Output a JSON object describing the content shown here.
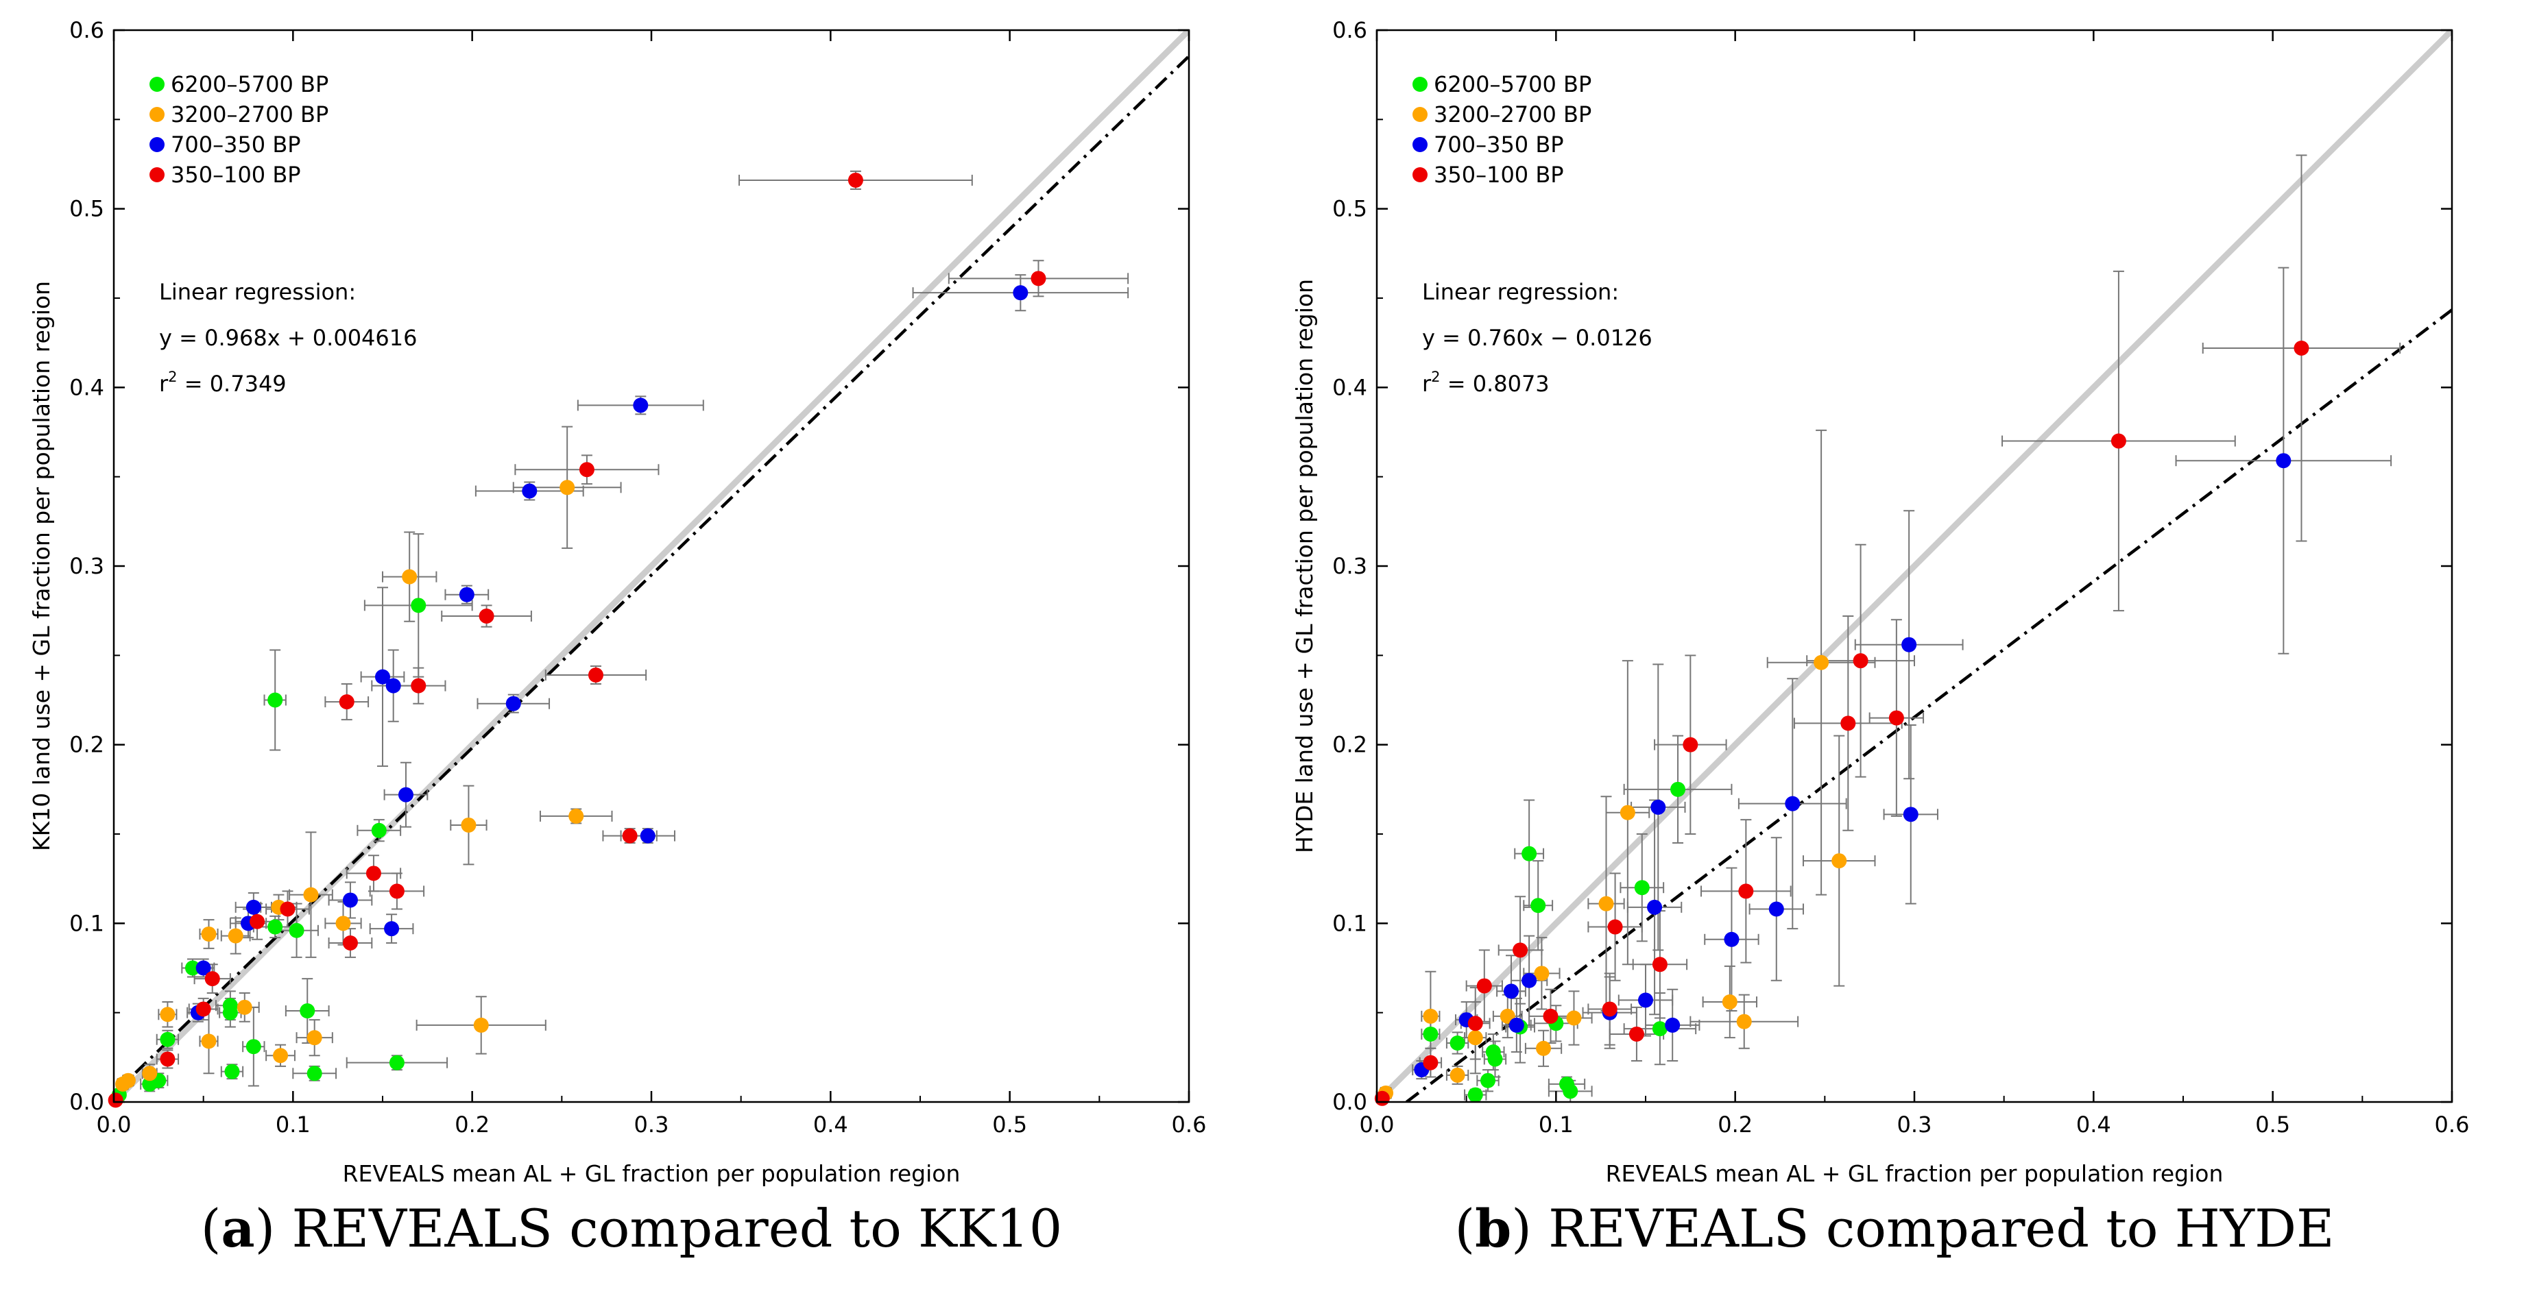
{
  "chart_data": [
    {
      "type": "scatter",
      "panel": "a",
      "caption_letter": "a",
      "caption_text": " REVEALS compared to KK10",
      "xlabel": "REVEALS mean AL + GL fraction per population region",
      "ylabel": "KK10 land use + GL fraction per population region",
      "xlim": [
        0,
        0.6
      ],
      "ylim": [
        0,
        0.6
      ],
      "xticks": [
        "0.0",
        "0.1",
        "0.2",
        "0.3",
        "0.4",
        "0.5",
        "0.6"
      ],
      "yticks": [
        "0.0",
        "0.1",
        "0.2",
        "0.3",
        "0.4",
        "0.5",
        "0.6"
      ],
      "grid": false,
      "legend_position": "top-left",
      "regression": {
        "title": "Linear regression:",
        "equation": "y = 0.968x + 0.004616",
        "r2_prefix": "r",
        "r2_sup": "2",
        "r2_value": " = 0.7349",
        "slope": 0.968,
        "intercept": 0.004616
      },
      "reference_line": {
        "slope": 1,
        "intercept": 0,
        "color": "#cccccc"
      },
      "series": [
        {
          "name": "6200–5700 BP",
          "color": "#00ee00",
          "points": [
            [
              0.003,
              0.004,
              0.002,
              0.002
            ],
            [
              0.02,
              0.01,
              0.005,
              0.004
            ],
            [
              0.025,
              0.012,
              0.005,
              0.004
            ],
            [
              0.03,
              0.035,
              0.006,
              0.005
            ],
            [
              0.044,
              0.075,
              0.006,
              0.005
            ],
            [
              0.065,
              0.054,
              0.008,
              0.008
            ],
            [
              0.065,
              0.05,
              0.006,
              0.008
            ],
            [
              0.066,
              0.017,
              0.006,
              0.004
            ],
            [
              0.078,
              0.031,
              0.006,
              0.022
            ],
            [
              0.09,
              0.225,
              0.006,
              0.028
            ],
            [
              0.09,
              0.098,
              0.012,
              0.006
            ],
            [
              0.102,
              0.096,
              0.012,
              0.015
            ],
            [
              0.108,
              0.051,
              0.012,
              0.018
            ],
            [
              0.112,
              0.016,
              0.012,
              0.004
            ],
            [
              0.148,
              0.152,
              0.012,
              0.006
            ],
            [
              0.158,
              0.022,
              0.028,
              0.004
            ],
            [
              0.17,
              0.278,
              0.03,
              0.04
            ]
          ]
        },
        {
          "name": "3200–2700 BP",
          "color": "#ffa500",
          "points": [
            [
              0.005,
              0.01,
              0.003,
              0.003
            ],
            [
              0.008,
              0.012,
              0.003,
              0.003
            ],
            [
              0.02,
              0.016,
              0.004,
              0.005
            ],
            [
              0.03,
              0.049,
              0.005,
              0.007
            ],
            [
              0.053,
              0.094,
              0.005,
              0.008
            ],
            [
              0.053,
              0.034,
              0.005,
              0.018
            ],
            [
              0.068,
              0.093,
              0.008,
              0.01
            ],
            [
              0.073,
              0.053,
              0.008,
              0.008
            ],
            [
              0.092,
              0.109,
              0.01,
              0.007
            ],
            [
              0.093,
              0.026,
              0.008,
              0.006
            ],
            [
              0.11,
              0.116,
              0.012,
              0.035
            ],
            [
              0.112,
              0.036,
              0.01,
              0.01
            ],
            [
              0.128,
              0.1,
              0.01,
              0.012
            ],
            [
              0.165,
              0.294,
              0.015,
              0.025
            ],
            [
              0.198,
              0.155,
              0.01,
              0.022
            ],
            [
              0.205,
              0.043,
              0.036,
              0.016
            ],
            [
              0.253,
              0.344,
              0.03,
              0.034
            ],
            [
              0.258,
              0.16,
              0.02,
              0.004
            ]
          ]
        },
        {
          "name": "700–350 BP",
          "color": "#0000ee",
          "points": [
            [
              0.047,
              0.05,
              0.006,
              0.005
            ],
            [
              0.05,
              0.075,
              0.006,
              0.005
            ],
            [
              0.075,
              0.1,
              0.01,
              0.008
            ],
            [
              0.078,
              0.109,
              0.01,
              0.008
            ],
            [
              0.132,
              0.113,
              0.012,
              0.01
            ],
            [
              0.15,
              0.238,
              0.012,
              0.05
            ],
            [
              0.155,
              0.097,
              0.012,
              0.008
            ],
            [
              0.156,
              0.233,
              0.012,
              0.02
            ],
            [
              0.163,
              0.172,
              0.012,
              0.018
            ],
            [
              0.197,
              0.284,
              0.012,
              0.005
            ],
            [
              0.223,
              0.223,
              0.02,
              0.005
            ],
            [
              0.232,
              0.342,
              0.03,
              0.005
            ],
            [
              0.294,
              0.39,
              0.035,
              0.005
            ],
            [
              0.298,
              0.149,
              0.015,
              0.004
            ],
            [
              0.506,
              0.453,
              0.06,
              0.01
            ]
          ]
        },
        {
          "name": "350–100 BP",
          "color": "#ee0000",
          "points": [
            [
              0.001,
              0.001,
              0.001,
              0.001
            ],
            [
              0.03,
              0.024,
              0.006,
              0.005
            ],
            [
              0.05,
              0.052,
              0.008,
              0.006
            ],
            [
              0.055,
              0.069,
              0.01,
              0.008
            ],
            [
              0.08,
              0.101,
              0.012,
              0.01
            ],
            [
              0.097,
              0.108,
              0.012,
              0.01
            ],
            [
              0.13,
              0.224,
              0.012,
              0.01
            ],
            [
              0.132,
              0.089,
              0.012,
              0.008
            ],
            [
              0.145,
              0.128,
              0.015,
              0.01
            ],
            [
              0.158,
              0.118,
              0.015,
              0.01
            ],
            [
              0.17,
              0.233,
              0.015,
              0.01
            ],
            [
              0.208,
              0.272,
              0.025,
              0.006
            ],
            [
              0.264,
              0.354,
              0.04,
              0.008
            ],
            [
              0.269,
              0.239,
              0.028,
              0.005
            ],
            [
              0.288,
              0.149,
              0.015,
              0.004
            ],
            [
              0.414,
              0.516,
              0.065,
              0.005
            ],
            [
              0.516,
              0.461,
              0.05,
              0.01
            ]
          ]
        }
      ]
    },
    {
      "type": "scatter",
      "panel": "b",
      "caption_letter": "b",
      "caption_text": " REVEALS compared to HYDE",
      "xlabel": "REVEALS mean AL + GL fraction per population region",
      "ylabel": "HYDE land use + GL fraction per population region",
      "xlim": [
        0,
        0.6
      ],
      "ylim": [
        0,
        0.6
      ],
      "xticks": [
        "0.0",
        "0.1",
        "0.2",
        "0.3",
        "0.4",
        "0.5",
        "0.6"
      ],
      "yticks": [
        "0.0",
        "0.1",
        "0.2",
        "0.3",
        "0.4",
        "0.5",
        "0.6"
      ],
      "grid": false,
      "legend_position": "top-left",
      "regression": {
        "title": "Linear regression:",
        "equation": "y = 0.760x − 0.0126",
        "r2_prefix": "r",
        "r2_sup": "2",
        "r2_value": " = 0.8073",
        "slope": 0.76,
        "intercept": -0.0126
      },
      "reference_line": {
        "slope": 1,
        "intercept": 0,
        "color": "#cccccc"
      },
      "series": [
        {
          "name": "6200–5700 BP",
          "color": "#00ee00",
          "points": [
            [
              0.03,
              0.038,
              0.005,
              0.008
            ],
            [
              0.045,
              0.033,
              0.006,
              0.006
            ],
            [
              0.055,
              0.004,
              0.006,
              0.003
            ],
            [
              0.062,
              0.012,
              0.006,
              0.006
            ],
            [
              0.065,
              0.028,
              0.006,
              0.01
            ],
            [
              0.066,
              0.024,
              0.006,
              0.01
            ],
            [
              0.08,
              0.042,
              0.008,
              0.02
            ],
            [
              0.085,
              0.139,
              0.008,
              0.03
            ],
            [
              0.09,
              0.11,
              0.008,
              0.025
            ],
            [
              0.1,
              0.044,
              0.012,
              0.01
            ],
            [
              0.106,
              0.01,
              0.01,
              0.004
            ],
            [
              0.108,
              0.006,
              0.012,
              0.006
            ],
            [
              0.148,
              0.12,
              0.012,
              0.03
            ],
            [
              0.158,
              0.041,
              0.02,
              0.02
            ],
            [
              0.168,
              0.175,
              0.03,
              0.03
            ]
          ]
        },
        {
          "name": "3200–2700 BP",
          "color": "#ffa500",
          "points": [
            [
              0.005,
              0.005,
              0.003,
              0.003
            ],
            [
              0.03,
              0.048,
              0.005,
              0.025
            ],
            [
              0.045,
              0.015,
              0.006,
              0.005
            ],
            [
              0.055,
              0.036,
              0.006,
              0.02
            ],
            [
              0.073,
              0.048,
              0.008,
              0.012
            ],
            [
              0.092,
              0.072,
              0.01,
              0.02
            ],
            [
              0.093,
              0.03,
              0.01,
              0.01
            ],
            [
              0.11,
              0.047,
              0.01,
              0.015
            ],
            [
              0.128,
              0.111,
              0.01,
              0.06
            ],
            [
              0.14,
              0.162,
              0.012,
              0.085
            ],
            [
              0.197,
              0.056,
              0.015,
              0.02
            ],
            [
              0.205,
              0.045,
              0.03,
              0.015
            ],
            [
              0.248,
              0.246,
              0.03,
              0.13
            ],
            [
              0.258,
              0.135,
              0.02,
              0.07
            ]
          ]
        },
        {
          "name": "700–350 BP",
          "color": "#0000ee",
          "points": [
            [
              0.025,
              0.018,
              0.005,
              0.005
            ],
            [
              0.05,
              0.046,
              0.006,
              0.01
            ],
            [
              0.075,
              0.062,
              0.008,
              0.02
            ],
            [
              0.078,
              0.043,
              0.008,
              0.015
            ],
            [
              0.085,
              0.068,
              0.01,
              0.025
            ],
            [
              0.13,
              0.05,
              0.015,
              0.02
            ],
            [
              0.15,
              0.057,
              0.015,
              0.02
            ],
            [
              0.155,
              0.109,
              0.015,
              0.06
            ],
            [
              0.157,
              0.165,
              0.015,
              0.08
            ],
            [
              0.165,
              0.043,
              0.015,
              0.02
            ],
            [
              0.198,
              0.091,
              0.015,
              0.04
            ],
            [
              0.223,
              0.108,
              0.015,
              0.04
            ],
            [
              0.232,
              0.167,
              0.03,
              0.07
            ],
            [
              0.297,
              0.256,
              0.03,
              0.075
            ],
            [
              0.298,
              0.161,
              0.015,
              0.05
            ],
            [
              0.506,
              0.359,
              0.06,
              0.108
            ]
          ]
        },
        {
          "name": "350–100 BP",
          "color": "#ee0000",
          "points": [
            [
              0.003,
              0.002,
              0.002,
              0.002
            ],
            [
              0.03,
              0.022,
              0.006,
              0.008
            ],
            [
              0.055,
              0.044,
              0.008,
              0.02
            ],
            [
              0.06,
              0.065,
              0.01,
              0.02
            ],
            [
              0.08,
              0.085,
              0.012,
              0.03
            ],
            [
              0.097,
              0.048,
              0.012,
              0.015
            ],
            [
              0.13,
              0.052,
              0.012,
              0.02
            ],
            [
              0.133,
              0.098,
              0.015,
              0.03
            ],
            [
              0.145,
              0.038,
              0.015,
              0.015
            ],
            [
              0.158,
              0.077,
              0.015,
              0.03
            ],
            [
              0.175,
              0.2,
              0.02,
              0.05
            ],
            [
              0.206,
              0.118,
              0.025,
              0.04
            ],
            [
              0.263,
              0.212,
              0.03,
              0.06
            ],
            [
              0.27,
              0.247,
              0.03,
              0.065
            ],
            [
              0.29,
              0.215,
              0.015,
              0.055
            ],
            [
              0.414,
              0.37,
              0.065,
              0.095
            ],
            [
              0.516,
              0.422,
              0.055,
              0.108
            ]
          ]
        }
      ]
    }
  ]
}
